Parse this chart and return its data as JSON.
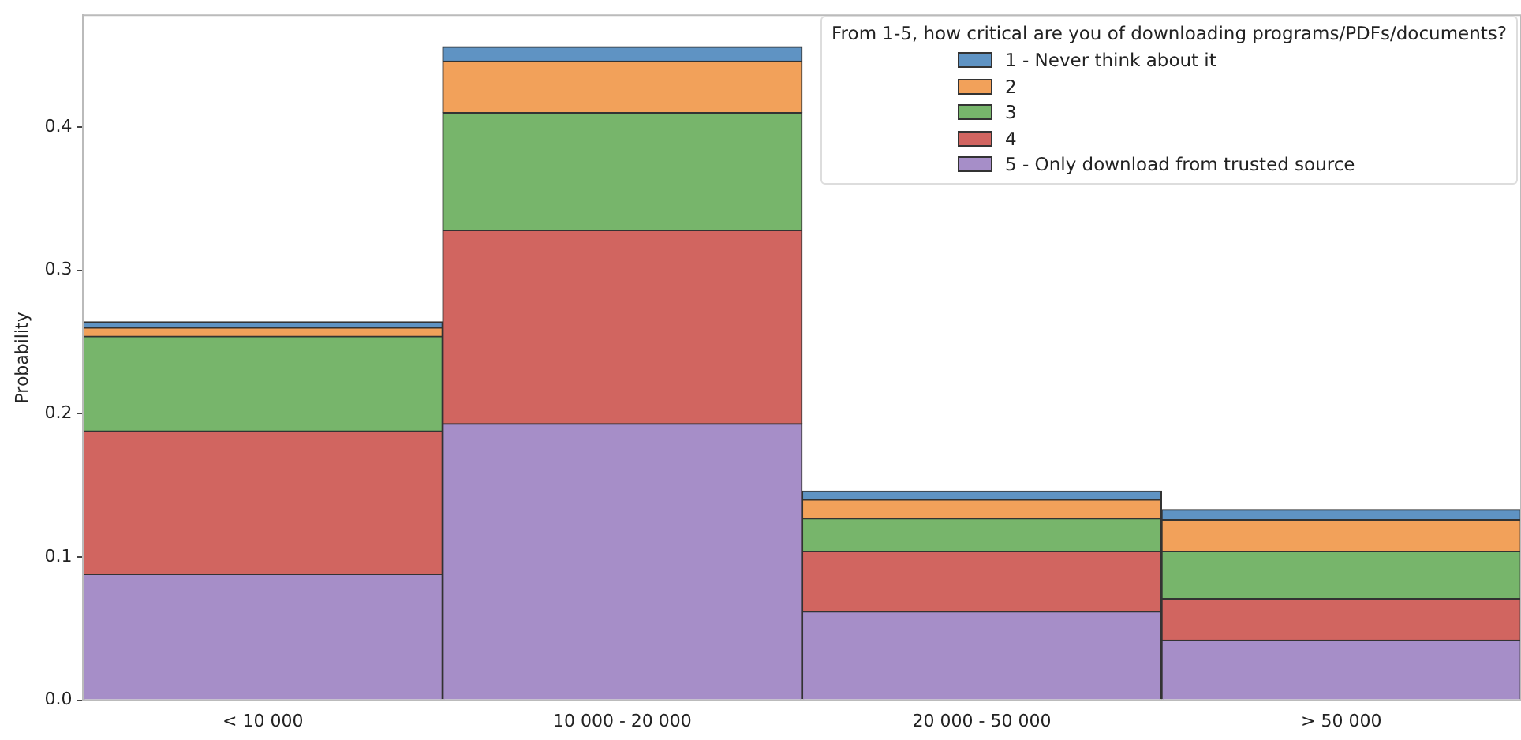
{
  "chart_data": {
    "type": "bar",
    "stacked": true,
    "ylabel": "Probability",
    "legend_title": "From 1-5, how critical are you of downloading programs/PDFs/documents?",
    "legend": "top right",
    "grid": false,
    "categories": [
      "< 10 000",
      "10 000 - 20 000",
      "20 000 - 50 000",
      "> 50 000"
    ],
    "ylim": [
      0,
      0.478
    ],
    "yticks": [
      {
        "value": 0,
        "label": "0.0"
      },
      {
        "value": 0.1,
        "label": "0.1"
      },
      {
        "value": 0.2,
        "label": "0.2"
      },
      {
        "value": 0.3,
        "label": "0.3"
      },
      {
        "value": 0.4,
        "label": "0.4"
      }
    ],
    "series": [
      {
        "name": "5 - Only download from trusted source",
        "color": "#a68ec8",
        "values": [
          0.088,
          0.193,
          0.062,
          0.042
        ]
      },
      {
        "name": "4",
        "color": "#d16560",
        "values": [
          0.1,
          0.135,
          0.042,
          0.029
        ]
      },
      {
        "name": "3",
        "color": "#77b56b",
        "values": [
          0.066,
          0.082,
          0.023,
          0.033
        ]
      },
      {
        "name": "2",
        "color": "#f2a15a",
        "values": [
          0.006,
          0.036,
          0.013,
          0.022
        ]
      },
      {
        "name": "1 - Never think about it",
        "color": "#5f93c3",
        "values": [
          0.004,
          0.01,
          0.006,
          0.007
        ]
      }
    ]
  }
}
